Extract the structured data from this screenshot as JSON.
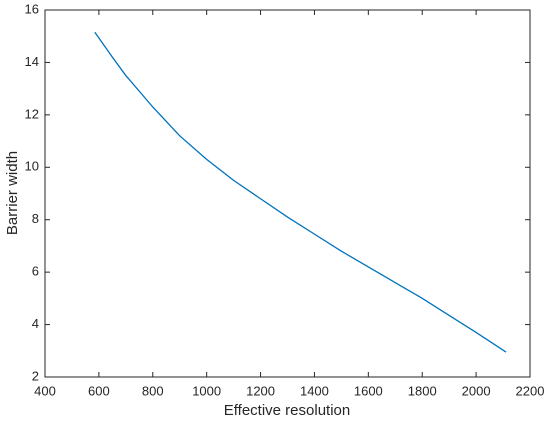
{
  "chart_data": {
    "type": "line",
    "xlabel": "Effective resolution",
    "ylabel": "Barrier width",
    "x": [
      585,
      650,
      700,
      800,
      900,
      1000,
      1100,
      1200,
      1300,
      1400,
      1500,
      1600,
      1700,
      1800,
      1900,
      2000,
      2111
    ],
    "series": [
      {
        "color": "#0072bd",
        "values": [
          15.15,
          14.2,
          13.5,
          12.3,
          11.2,
          10.3,
          9.5,
          8.8,
          8.1,
          7.45,
          6.8,
          6.2,
          5.6,
          5.0,
          4.35,
          3.7,
          2.95
        ]
      }
    ],
    "xlim": [
      400,
      2200
    ],
    "xticks": [
      400,
      600,
      800,
      1000,
      1200,
      1400,
      1600,
      1800,
      2000,
      2200
    ],
    "ylim": [
      2,
      16
    ],
    "yticks": [
      2,
      4,
      6,
      8,
      10,
      12,
      14,
      16
    ],
    "grid": false
  }
}
